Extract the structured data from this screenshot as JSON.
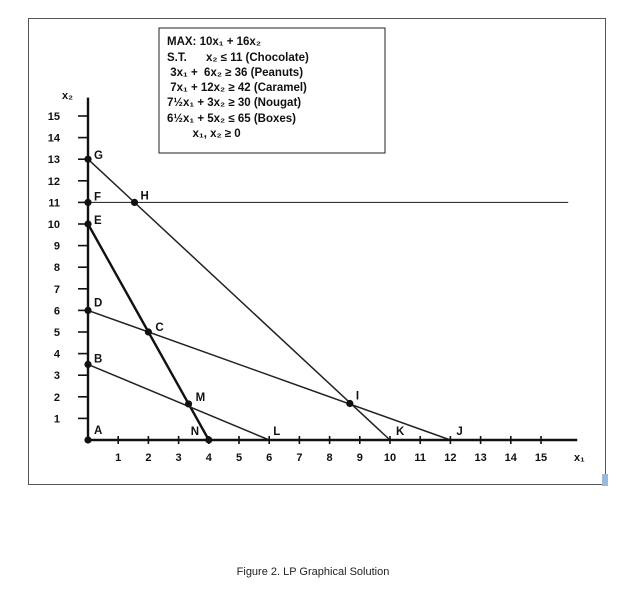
{
  "figure": {
    "caption": "Figure 2. LP Graphical Solution",
    "formulation": [
      "MAX: 10x₁ + 16x₂",
      "S.T.      x₂ ≤ 11 (Chocolate)",
      " 3x₁ +  6x₂ ≥ 36 (Peanuts)",
      " 7x₁ + 12x₂ ≥ 42 (Caramel)",
      "7½x₁ + 3x₂ ≥ 30 (Nougat)",
      "6½x₁ + 5x₂ ≤ 65 (Boxes)",
      "        x₁, x₂ ≥ 0"
    ]
  },
  "chart_data": {
    "type": "line",
    "xlabel": "x₁",
    "ylabel": "x₂",
    "xlim": [
      0,
      15
    ],
    "ylim": [
      0,
      15
    ],
    "x_ticks": [
      1,
      2,
      3,
      4,
      5,
      6,
      7,
      8,
      9,
      10,
      11,
      12,
      13,
      14,
      15
    ],
    "y_ticks": [
      1,
      2,
      3,
      4,
      5,
      6,
      7,
      8,
      9,
      10,
      11,
      12,
      13,
      14,
      15
    ],
    "series": [
      {
        "points": [
          [
            0,
            11
          ],
          [
            15.9,
            11
          ]
        ],
        "style": "thin"
      },
      {
        "points": [
          [
            0,
            13
          ],
          [
            10,
            0
          ]
        ],
        "style": "normal"
      },
      {
        "points": [
          [
            0,
            10
          ],
          [
            4,
            0
          ]
        ],
        "style": "bold"
      },
      {
        "points": [
          [
            0,
            6
          ],
          [
            12,
            0
          ]
        ],
        "style": "normal"
      },
      {
        "points": [
          [
            0,
            3.5
          ],
          [
            6,
            0
          ]
        ],
        "style": "normal"
      }
    ],
    "points": [
      {
        "label": "A",
        "x": 0,
        "y": 0,
        "marker": true
      },
      {
        "label": "B",
        "x": 0,
        "y": 3.5,
        "marker": true
      },
      {
        "label": "C",
        "x": 2,
        "y": 5,
        "marker": true
      },
      {
        "label": "D",
        "x": 0,
        "y": 6,
        "marker": true
      },
      {
        "label": "E",
        "x": 0,
        "y": 10,
        "marker": true
      },
      {
        "label": "F",
        "x": 0,
        "y": 11,
        "marker": true
      },
      {
        "label": "G",
        "x": 0,
        "y": 13,
        "marker": true
      },
      {
        "label": "H",
        "x": 1.54,
        "y": 11,
        "marker": true
      },
      {
        "label": "I",
        "x": 8.67,
        "y": 1.69,
        "marker": true
      },
      {
        "label": "J",
        "x": 12,
        "y": 0,
        "marker": false
      },
      {
        "label": "K",
        "x": 10,
        "y": 0,
        "marker": false
      },
      {
        "label": "L",
        "x": 6,
        "y": 0,
        "marker": false
      },
      {
        "label": "M",
        "x": 3.33,
        "y": 1.67,
        "marker": true
      },
      {
        "label": "N",
        "x": 4,
        "y": 0,
        "marker": true
      }
    ]
  }
}
